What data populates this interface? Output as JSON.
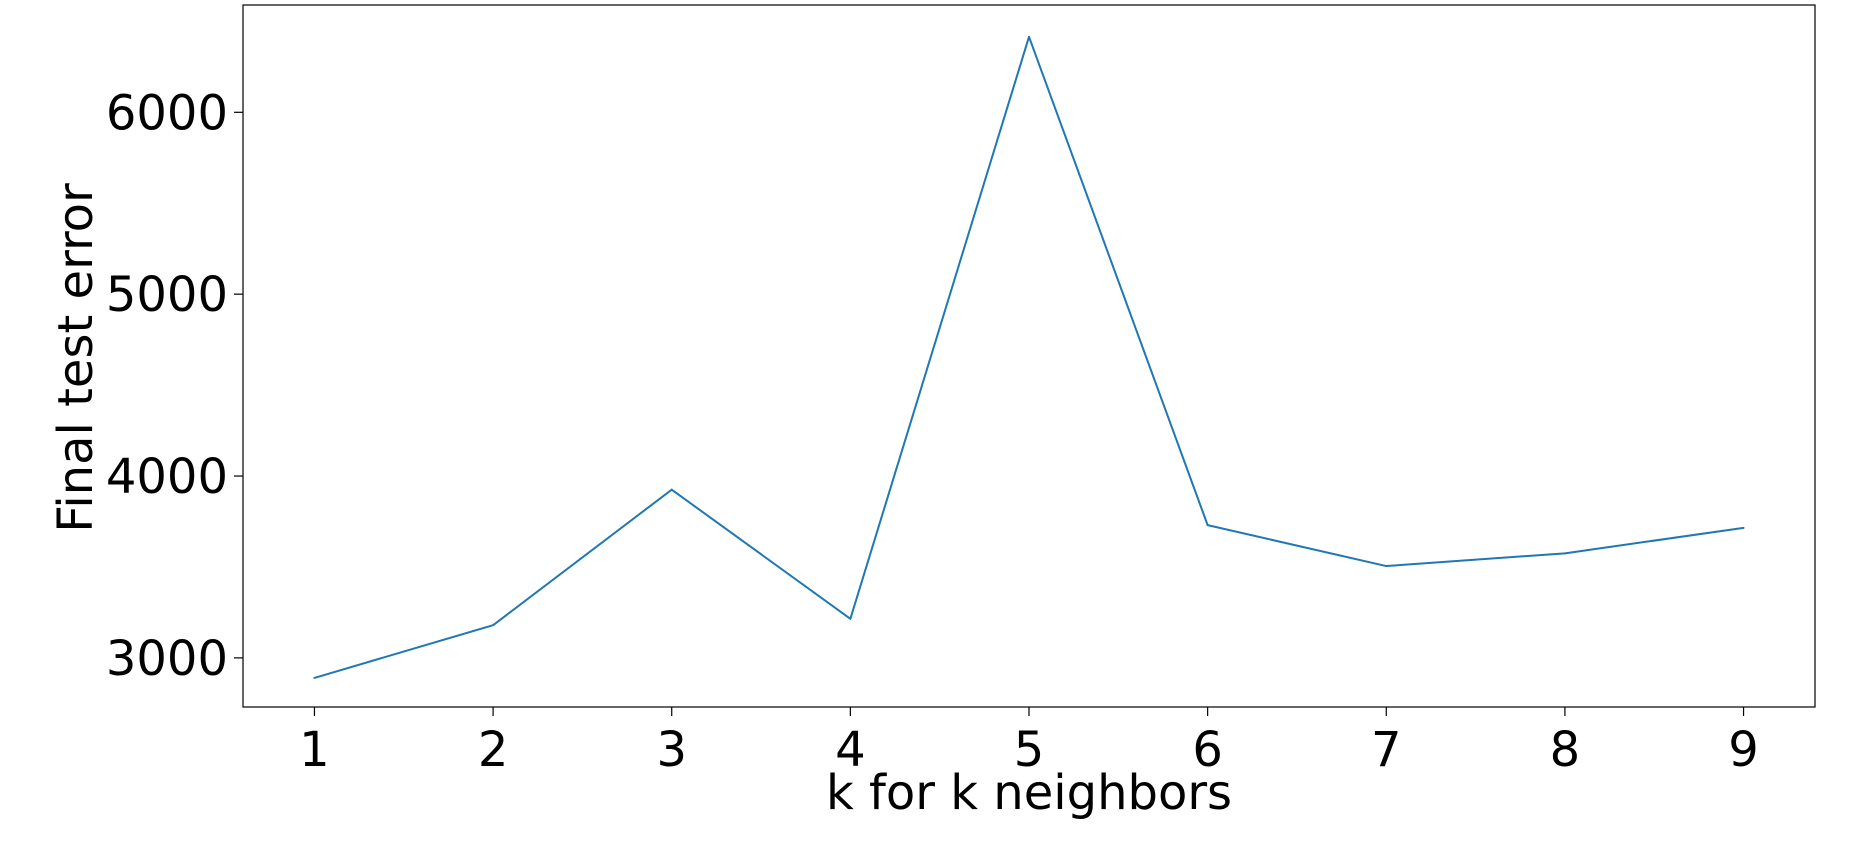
{
  "chart_data": {
    "type": "line",
    "title": "",
    "xlabel": "k for k neighbors",
    "ylabel": "Final test error",
    "x": [
      1,
      2,
      3,
      4,
      5,
      6,
      7,
      8,
      9
    ],
    "series": [
      {
        "values": [
          2890,
          3180,
          3925,
          3215,
          6415,
          3730,
          3505,
          3575,
          3715
        ],
        "color": "#1f77b4"
      }
    ],
    "xticks": [
      "1",
      "2",
      "3",
      "4",
      "5",
      "6",
      "7",
      "8",
      "9"
    ],
    "yticks": [
      "3000",
      "4000",
      "5000",
      "6000"
    ],
    "xlim": [
      0.6,
      9.4
    ],
    "ylim": [
      2730,
      6590
    ],
    "grid": false,
    "legend": "none"
  }
}
